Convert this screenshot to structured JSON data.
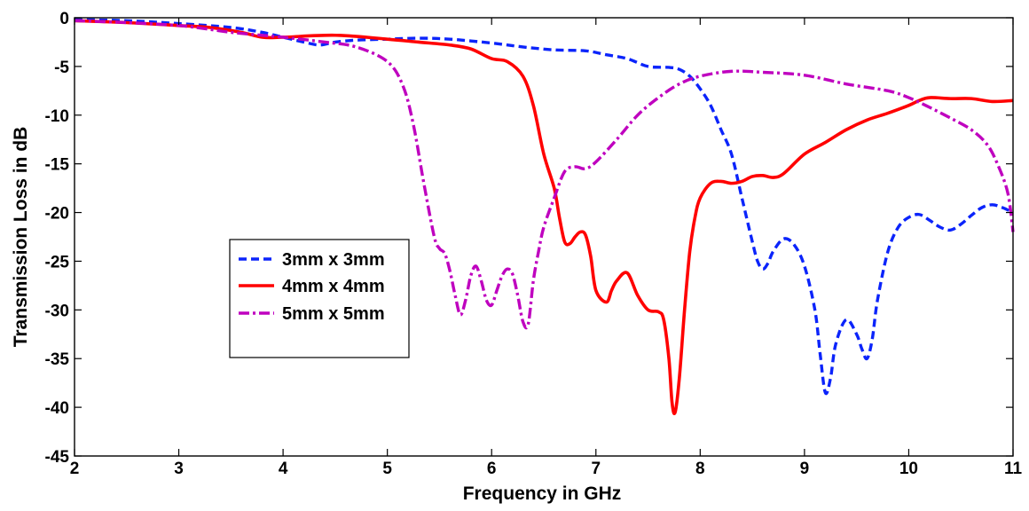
{
  "chart_data": {
    "type": "line",
    "title": "",
    "xlabel": "Frequency in GHz",
    "ylabel": "Transmission Loss in dB",
    "xlim": [
      2,
      11
    ],
    "ylim": [
      -45,
      0
    ],
    "xticks": [
      "2",
      "3",
      "4",
      "5",
      "6",
      "7",
      "8",
      "9",
      "10",
      "11"
    ],
    "yticks": [
      "0",
      "-5",
      "-10",
      "-15",
      "-20",
      "-25",
      "-30",
      "-35",
      "-40",
      "-45"
    ],
    "grid": false,
    "legend_position": "middle-left",
    "series": [
      {
        "name": "3mm x 3mm",
        "color": "#0b24fb",
        "style": "dashed",
        "x": [
          2.0,
          2.5,
          3.0,
          3.5,
          3.8,
          4.0,
          4.2,
          4.35,
          4.5,
          4.7,
          5.0,
          5.3,
          5.6,
          6.0,
          6.3,
          6.6,
          6.9,
          7.1,
          7.3,
          7.5,
          7.7,
          7.8,
          7.9,
          8.0,
          8.1,
          8.2,
          8.3,
          8.4,
          8.5,
          8.55,
          8.6,
          8.65,
          8.7,
          8.8,
          8.9,
          9.0,
          9.1,
          9.15,
          9.2,
          9.25,
          9.3,
          9.4,
          9.5,
          9.55,
          9.6,
          9.65,
          9.7,
          9.8,
          9.9,
          10.0,
          10.1,
          10.2,
          10.3,
          10.4,
          10.5,
          10.6,
          10.7,
          10.8,
          10.9,
          11.0
        ],
        "y": [
          -0.2,
          -0.3,
          -0.6,
          -1.0,
          -1.5,
          -2.0,
          -2.5,
          -2.8,
          -2.5,
          -2.3,
          -2.2,
          -2.1,
          -2.2,
          -2.6,
          -3.0,
          -3.3,
          -3.4,
          -3.8,
          -4.2,
          -5.0,
          -5.1,
          -5.3,
          -6.0,
          -7.3,
          -9.0,
          -11.5,
          -14.0,
          -18.5,
          -23.0,
          -25.0,
          -25.8,
          -25.2,
          -24.0,
          -22.7,
          -23.3,
          -25.5,
          -30.0,
          -34.5,
          -38.5,
          -37.0,
          -33.5,
          -31.0,
          -32.5,
          -34.0,
          -35.0,
          -33.0,
          -29.0,
          -24.0,
          -21.5,
          -20.5,
          -20.2,
          -20.8,
          -21.5,
          -21.8,
          -21.2,
          -20.3,
          -19.5,
          -19.2,
          -19.5,
          -20.0
        ]
      },
      {
        "name": "4mm x 4mm",
        "color": "#ff0000",
        "style": "solid",
        "x": [
          2.0,
          2.5,
          3.0,
          3.3,
          3.6,
          3.8,
          4.0,
          4.5,
          5.0,
          5.3,
          5.6,
          5.8,
          6.0,
          6.15,
          6.3,
          6.4,
          6.5,
          6.6,
          6.65,
          6.7,
          6.75,
          6.8,
          6.85,
          6.9,
          6.95,
          7.0,
          7.1,
          7.15,
          7.2,
          7.3,
          7.4,
          7.5,
          7.6,
          7.65,
          7.7,
          7.73,
          7.76,
          7.8,
          7.85,
          7.9,
          7.95,
          8.0,
          8.1,
          8.2,
          8.3,
          8.4,
          8.5,
          8.6,
          8.7,
          8.8,
          9.0,
          9.2,
          9.4,
          9.6,
          9.8,
          10.0,
          10.1,
          10.2,
          10.4,
          10.6,
          10.8,
          11.0
        ],
        "y": [
          -0.3,
          -0.5,
          -0.8,
          -1.0,
          -1.5,
          -2.0,
          -2.0,
          -1.8,
          -2.2,
          -2.5,
          -2.8,
          -3.2,
          -4.2,
          -4.5,
          -6.0,
          -9.0,
          -14.0,
          -17.5,
          -20.5,
          -23.0,
          -23.2,
          -22.5,
          -22.0,
          -22.3,
          -24.5,
          -28.0,
          -29.2,
          -28.0,
          -27.0,
          -26.2,
          -28.5,
          -30.0,
          -30.2,
          -31.0,
          -35.0,
          -39.5,
          -40.5,
          -37.0,
          -30.0,
          -24.0,
          -20.5,
          -18.5,
          -17.0,
          -16.8,
          -17.0,
          -16.8,
          -16.3,
          -16.2,
          -16.4,
          -16.0,
          -14.0,
          -12.8,
          -11.5,
          -10.5,
          -9.8,
          -9.0,
          -8.5,
          -8.2,
          -8.3,
          -8.3,
          -8.6,
          -8.5
        ]
      },
      {
        "name": "5mm x 5mm",
        "color": "#bf00bf",
        "style": "dashdot",
        "x": [
          2.0,
          2.5,
          3.0,
          3.3,
          3.5,
          3.8,
          4.0,
          4.4,
          4.7,
          5.0,
          5.15,
          5.25,
          5.35,
          5.45,
          5.5,
          5.55,
          5.6,
          5.65,
          5.7,
          5.75,
          5.8,
          5.85,
          5.9,
          5.95,
          6.0,
          6.05,
          6.1,
          6.15,
          6.2,
          6.25,
          6.3,
          6.35,
          6.4,
          6.45,
          6.5,
          6.6,
          6.7,
          6.8,
          6.9,
          7.0,
          7.2,
          7.4,
          7.6,
          7.8,
          8.0,
          8.3,
          8.6,
          9.0,
          9.4,
          9.8,
          10.0,
          10.2,
          10.4,
          10.6,
          10.75,
          10.85,
          10.95,
          11.0
        ],
        "y": [
          -0.3,
          -0.5,
          -0.8,
          -1.2,
          -1.5,
          -1.8,
          -2.0,
          -2.5,
          -3.0,
          -4.5,
          -7.0,
          -11.0,
          -17.0,
          -22.5,
          -23.7,
          -24.2,
          -26.0,
          -28.5,
          -30.5,
          -29.0,
          -26.5,
          -25.5,
          -27.0,
          -29.0,
          -29.5,
          -28.0,
          -26.5,
          -25.8,
          -26.3,
          -28.5,
          -31.2,
          -31.5,
          -27.0,
          -24.0,
          -21.5,
          -18.5,
          -15.8,
          -15.3,
          -15.5,
          -14.8,
          -12.5,
          -10.0,
          -8.2,
          -6.8,
          -6.0,
          -5.5,
          -5.6,
          -5.9,
          -6.8,
          -7.5,
          -8.2,
          -9.2,
          -10.3,
          -11.5,
          -13.0,
          -15.0,
          -18.0,
          -22.0
        ]
      }
    ]
  }
}
